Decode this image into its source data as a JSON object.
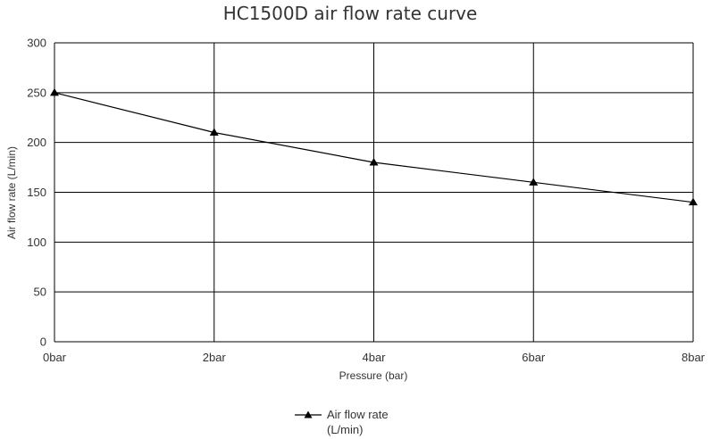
{
  "chart_data": {
    "type": "line",
    "title": "HC1500D air flow rate curve",
    "xlabel": "Pressure (bar)",
    "ylabel": "Air flow rate (L/min)",
    "categories": [
      "0bar",
      "2bar",
      "4bar",
      "6bar",
      "8bar"
    ],
    "y_ticks": [
      "0",
      "50",
      "100",
      "150",
      "200",
      "250",
      "300"
    ],
    "ylim": [
      0,
      300
    ],
    "grid": true,
    "legend_position": "bottom",
    "series": [
      {
        "name": "Air flow rate (L/min)",
        "legend_lines": [
          "Air flow rate",
          "(L/min)"
        ],
        "values": [
          250,
          210,
          180,
          160,
          140
        ],
        "marker": "triangle",
        "color": "#000000"
      }
    ]
  }
}
